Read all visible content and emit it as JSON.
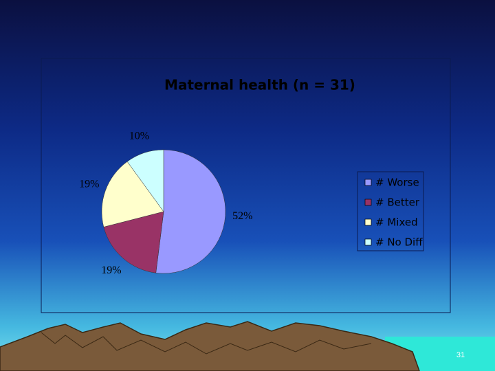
{
  "chart_data": {
    "type": "pie",
    "title": "Maternal health (n = 31)",
    "categories": [
      "# Worse",
      "# Better",
      "# Mixed",
      "# No Diff"
    ],
    "values": [
      52,
      19,
      19,
      10
    ],
    "value_labels": [
      "52%",
      "19%",
      "19%",
      "10%"
    ],
    "colors": [
      "#9999ff",
      "#993366",
      "#ffffcc",
      "#ccffff"
    ],
    "legend": "right"
  },
  "slide_number": "31"
}
